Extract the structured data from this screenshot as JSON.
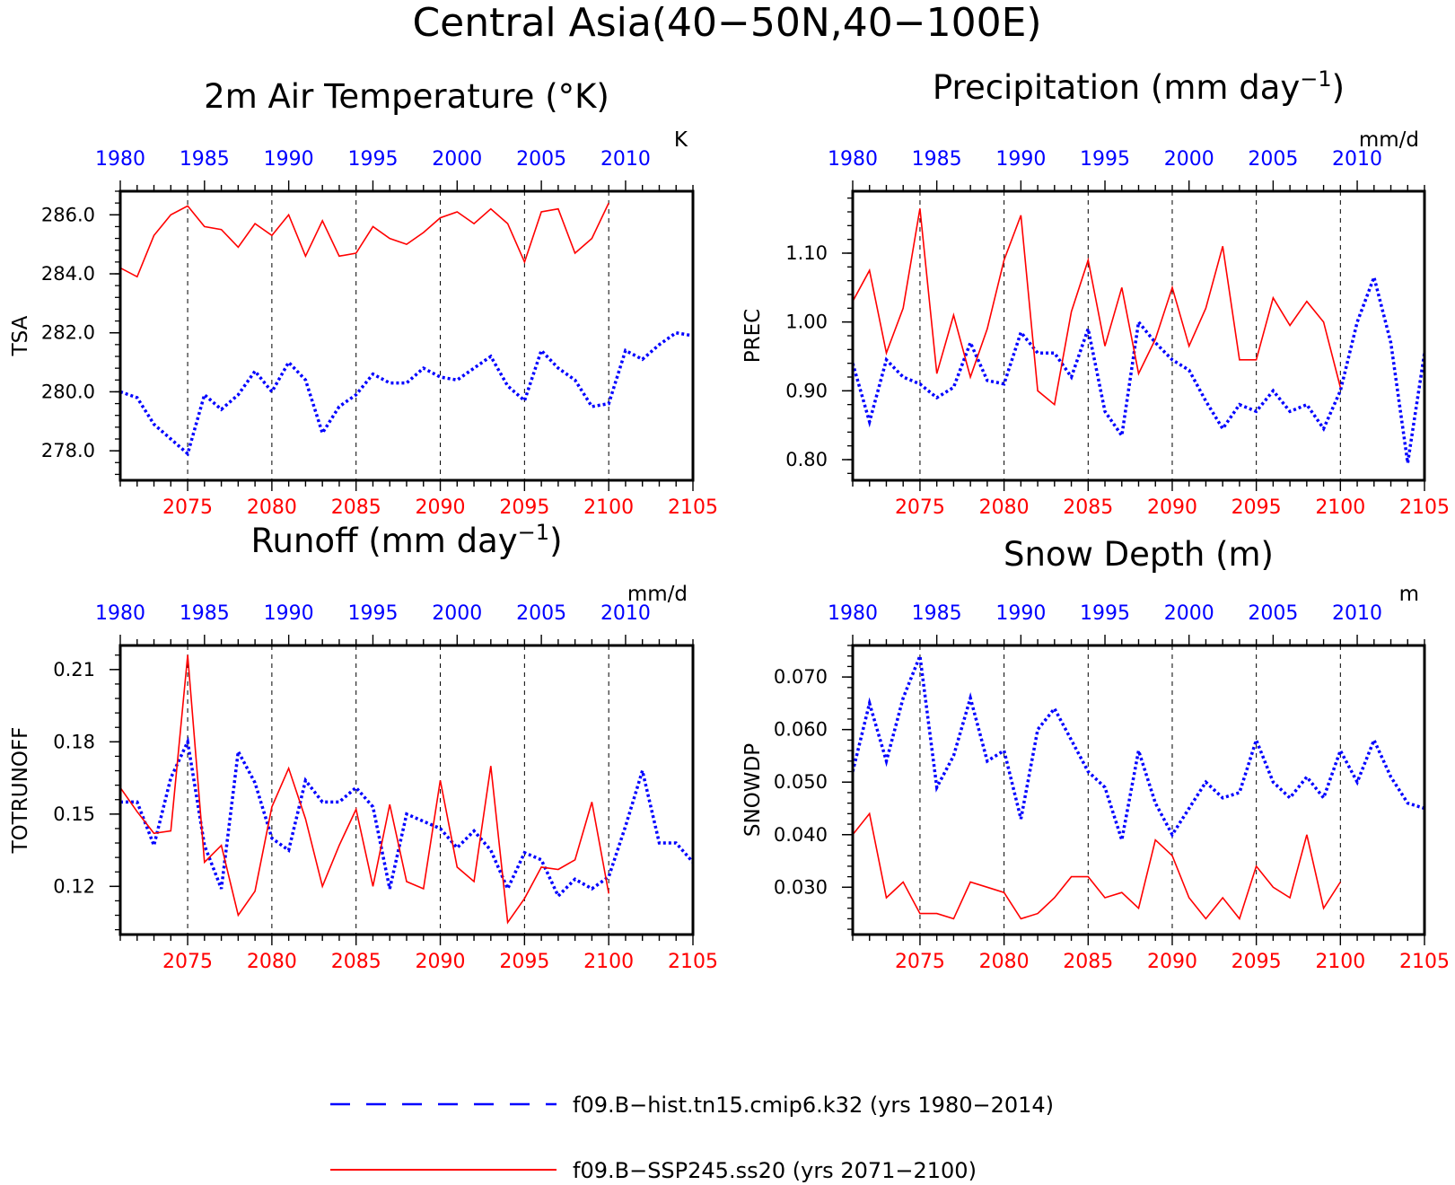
{
  "title": "Central Asia(40−50N,40−100E)",
  "colors": {
    "hist": "#0000ff",
    "ssp": "#ff0000",
    "axis": "#000000"
  },
  "legend": [
    {
      "key": "hist",
      "label": "f09.B−hist.tn15.cmip6.k32 (yrs 1980−2014)",
      "color": "#0000ff",
      "style": "dashed"
    },
    {
      "key": "ssp",
      "label": "f09.B−SSP245.ss20 (yrs 2071−2100)",
      "color": "#ff0000",
      "style": "solid"
    }
  ],
  "chart_data": [
    {
      "type": "line",
      "title": "2m Air Temperature (°K)",
      "ylabel": "TSA",
      "unit": "K",
      "ylim": [
        277.0,
        286.8
      ],
      "yticks": [
        278.0,
        280.0,
        282.0,
        284.0,
        286.0
      ],
      "ytick_labels": [
        "278.0",
        "280.0",
        "282.0",
        "284.0",
        "286.0"
      ],
      "x_bottom": {
        "range": [
          2071,
          2105
        ],
        "ticks": [
          2075,
          2080,
          2085,
          2090,
          2095,
          2100,
          2105
        ],
        "color": "#ff0000"
      },
      "x_top": {
        "range": [
          1980,
          2014
        ],
        "ticks": [
          1980,
          1985,
          1990,
          1995,
          2000,
          2005,
          2010
        ],
        "color": "#0000ff"
      },
      "series": [
        {
          "key": "hist",
          "axis": "top",
          "x_start": 1980,
          "values": [
            280.0,
            279.8,
            278.9,
            278.4,
            277.9,
            279.9,
            279.4,
            279.9,
            280.7,
            280.0,
            281.0,
            280.4,
            278.6,
            279.5,
            279.9,
            280.6,
            280.3,
            280.3,
            280.8,
            280.5,
            280.4,
            280.8,
            281.2,
            280.2,
            279.7,
            281.4,
            280.8,
            280.4,
            279.5,
            279.6,
            281.4,
            281.1,
            281.6,
            282.0,
            281.9
          ]
        },
        {
          "key": "ssp",
          "axis": "bottom",
          "x_start": 2071,
          "values": [
            284.2,
            283.9,
            285.3,
            286.0,
            286.3,
            285.6,
            285.5,
            284.9,
            285.7,
            285.3,
            286.0,
            284.6,
            285.8,
            284.6,
            284.7,
            285.6,
            285.2,
            285.0,
            285.4,
            285.9,
            286.1,
            285.7,
            286.2,
            285.7,
            284.4,
            286.1,
            286.2,
            284.7,
            285.2,
            286.4
          ]
        }
      ]
    },
    {
      "type": "line",
      "title": "Precipitation (mm day",
      "title_sup": "−1",
      "title_end": ")",
      "ylabel": "PREC",
      "unit": "mm/d",
      "ylim": [
        0.77,
        1.19
      ],
      "yticks": [
        0.8,
        0.9,
        1.0,
        1.1
      ],
      "ytick_labels": [
        "0.80",
        "0.90",
        "1.00",
        "1.10"
      ],
      "x_bottom": {
        "range": [
          2071,
          2105
        ],
        "ticks": [
          2075,
          2080,
          2085,
          2090,
          2095,
          2100,
          2105
        ],
        "color": "#ff0000"
      },
      "x_top": {
        "range": [
          1980,
          2014
        ],
        "ticks": [
          1980,
          1985,
          1990,
          1995,
          2000,
          2005,
          2010
        ],
        "color": "#0000ff"
      },
      "series": [
        {
          "key": "hist",
          "axis": "top",
          "x_start": 1980,
          "values": [
            0.94,
            0.855,
            0.945,
            0.92,
            0.91,
            0.89,
            0.905,
            0.97,
            0.915,
            0.91,
            0.985,
            0.955,
            0.955,
            0.92,
            0.99,
            0.87,
            0.835,
            1.0,
            0.97,
            0.945,
            0.93,
            0.885,
            0.845,
            0.88,
            0.87,
            0.9,
            0.87,
            0.88,
            0.845,
            0.9,
            1.0,
            1.065,
            0.97,
            0.795,
            0.955
          ]
        },
        {
          "key": "ssp",
          "axis": "bottom",
          "x_start": 2071,
          "values": [
            1.03,
            1.075,
            0.955,
            1.02,
            1.165,
            0.925,
            1.01,
            0.92,
            0.99,
            1.09,
            1.155,
            0.9,
            0.88,
            1.015,
            1.09,
            0.965,
            1.05,
            0.925,
            0.975,
            1.05,
            0.965,
            1.02,
            1.11,
            0.945,
            0.945,
            1.035,
            0.995,
            1.03,
            1.0,
            0.905
          ]
        }
      ]
    },
    {
      "type": "line",
      "title": "Runoff (mm day",
      "title_sup": "−1",
      "title_end": ")",
      "ylabel": "TOTRUNOFF",
      "unit": "mm/d",
      "ylim": [
        0.1,
        0.22
      ],
      "yticks": [
        0.12,
        0.15,
        0.18,
        0.21
      ],
      "ytick_labels": [
        "0.12",
        "0.15",
        "0.18",
        "0.21"
      ],
      "x_bottom": {
        "range": [
          2071,
          2105
        ],
        "ticks": [
          2075,
          2080,
          2085,
          2090,
          2095,
          2100,
          2105
        ],
        "color": "#ff0000"
      },
      "x_top": {
        "range": [
          1980,
          2014
        ],
        "ticks": [
          1980,
          1985,
          1990,
          1995,
          2000,
          2005,
          2010
        ],
        "color": "#0000ff"
      },
      "series": [
        {
          "key": "hist",
          "axis": "top",
          "x_start": 1980,
          "values": [
            0.155,
            0.155,
            0.137,
            0.165,
            0.18,
            0.137,
            0.119,
            0.176,
            0.163,
            0.14,
            0.135,
            0.164,
            0.155,
            0.155,
            0.161,
            0.153,
            0.119,
            0.15,
            0.147,
            0.144,
            0.136,
            0.143,
            0.135,
            0.119,
            0.134,
            0.131,
            0.116,
            0.123,
            0.119,
            0.124,
            0.145,
            0.168,
            0.138,
            0.138,
            0.13
          ]
        },
        {
          "key": "ssp",
          "axis": "bottom",
          "x_start": 2071,
          "values": [
            0.161,
            0.151,
            0.142,
            0.143,
            0.216,
            0.13,
            0.137,
            0.108,
            0.118,
            0.153,
            0.169,
            0.148,
            0.12,
            0.137,
            0.152,
            0.12,
            0.154,
            0.122,
            0.119,
            0.164,
            0.128,
            0.122,
            0.17,
            0.105,
            0.115,
            0.128,
            0.127,
            0.131,
            0.155,
            0.117
          ]
        }
      ]
    },
    {
      "type": "line",
      "title": "Snow Depth (m)",
      "ylabel": "SNOWDP",
      "unit": "m",
      "ylim": [
        0.021,
        0.076
      ],
      "yticks": [
        0.03,
        0.04,
        0.05,
        0.06,
        0.07
      ],
      "ytick_labels": [
        "0.030",
        "0.040",
        "0.050",
        "0.060",
        "0.070"
      ],
      "x_bottom": {
        "range": [
          2071,
          2105
        ],
        "ticks": [
          2075,
          2080,
          2085,
          2090,
          2095,
          2100,
          2105
        ],
        "color": "#ff0000"
      },
      "x_top": {
        "range": [
          1980,
          2014
        ],
        "ticks": [
          1980,
          1985,
          1990,
          1995,
          2000,
          2005,
          2010
        ],
        "color": "#0000ff"
      },
      "series": [
        {
          "key": "hist",
          "axis": "top",
          "x_start": 1980,
          "values": [
            0.052,
            0.065,
            0.054,
            0.066,
            0.074,
            0.049,
            0.055,
            0.066,
            0.054,
            0.056,
            0.043,
            0.06,
            0.064,
            0.058,
            0.052,
            0.049,
            0.039,
            0.056,
            0.046,
            0.04,
            0.045,
            0.05,
            0.047,
            0.048,
            0.058,
            0.05,
            0.047,
            0.051,
            0.047,
            0.056,
            0.05,
            0.058,
            0.051,
            0.046,
            0.045
          ]
        },
        {
          "key": "ssp",
          "axis": "bottom",
          "x_start": 2071,
          "values": [
            0.04,
            0.044,
            0.028,
            0.031,
            0.025,
            0.025,
            0.024,
            0.031,
            0.03,
            0.029,
            0.024,
            0.025,
            0.028,
            0.032,
            0.032,
            0.028,
            0.029,
            0.026,
            0.039,
            0.036,
            0.028,
            0.024,
            0.028,
            0.024,
            0.034,
            0.03,
            0.028,
            0.04,
            0.026,
            0.031
          ]
        }
      ]
    }
  ]
}
